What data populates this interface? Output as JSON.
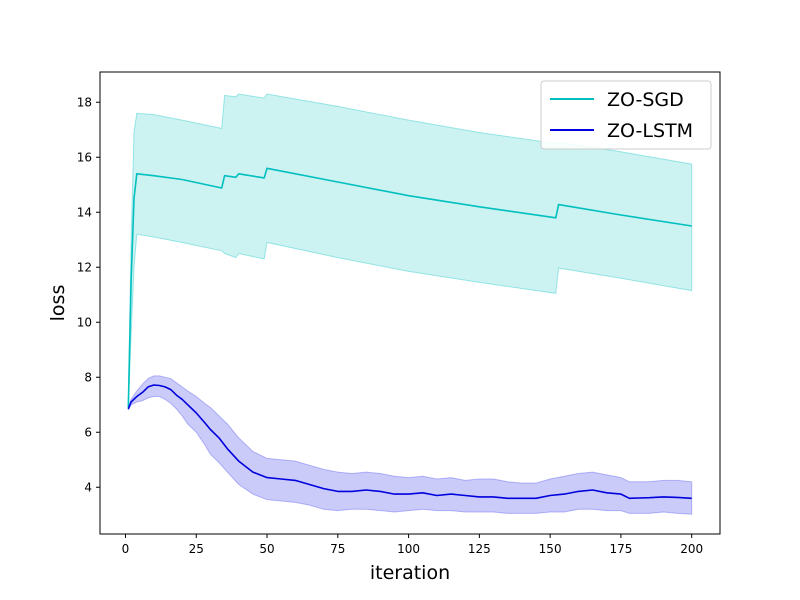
{
  "chart_data": {
    "type": "line",
    "xlabel": "iteration",
    "ylabel": "loss",
    "xlim": [
      -9,
      210
    ],
    "ylim": [
      2.3,
      19.1
    ],
    "xticks": [
      0,
      25,
      50,
      75,
      100,
      125,
      150,
      175,
      200
    ],
    "yticks": [
      4,
      6,
      8,
      10,
      12,
      14,
      16,
      18
    ],
    "grid": false,
    "legend_position": "top-right",
    "series": [
      {
        "name": "ZO-SGD",
        "color": "#00bfbf",
        "band_color": "#00bfbf",
        "points": [
          [
            1,
            6.9
          ],
          [
            2,
            11.5
          ],
          [
            3,
            14.5
          ],
          [
            4,
            15.4
          ],
          [
            10,
            15.33
          ],
          [
            20,
            15.19
          ],
          [
            34,
            14.88
          ],
          [
            35,
            15.33
          ],
          [
            39,
            15.27
          ],
          [
            40,
            15.4
          ],
          [
            49,
            15.25
          ],
          [
            50,
            15.6
          ],
          [
            75,
            15.1
          ],
          [
            100,
            14.6
          ],
          [
            125,
            14.2
          ],
          [
            152,
            13.8
          ],
          [
            153,
            14.28
          ],
          [
            175,
            13.9
          ],
          [
            200,
            13.5
          ]
        ],
        "lower": [
          [
            1,
            6.9
          ],
          [
            2,
            9.5
          ],
          [
            3,
            12.0
          ],
          [
            4,
            13.2
          ],
          [
            10,
            13.1
          ],
          [
            20,
            12.9
          ],
          [
            34,
            12.6
          ],
          [
            35,
            12.5
          ],
          [
            39,
            12.35
          ],
          [
            40,
            12.5
          ],
          [
            49,
            12.3
          ],
          [
            50,
            12.9
          ],
          [
            75,
            12.35
          ],
          [
            100,
            11.85
          ],
          [
            125,
            11.45
          ],
          [
            152,
            11.05
          ],
          [
            153,
            11.97
          ],
          [
            175,
            11.6
          ],
          [
            200,
            11.15
          ]
        ],
        "upper": [
          [
            1,
            6.9
          ],
          [
            2,
            13.0
          ],
          [
            3,
            16.9
          ],
          [
            4,
            17.6
          ],
          [
            10,
            17.55
          ],
          [
            20,
            17.35
          ],
          [
            34,
            17.05
          ],
          [
            35,
            18.25
          ],
          [
            39,
            18.2
          ],
          [
            40,
            18.3
          ],
          [
            49,
            18.15
          ],
          [
            50,
            18.3
          ],
          [
            75,
            17.85
          ],
          [
            100,
            17.35
          ],
          [
            125,
            16.9
          ],
          [
            152,
            16.5
          ],
          [
            153,
            16.55
          ],
          [
            175,
            16.2
          ],
          [
            200,
            15.75
          ]
        ]
      },
      {
        "name": "ZO-LSTM",
        "color": "#0000dd",
        "band_color": "#4444ee",
        "points": [
          [
            1,
            6.85
          ],
          [
            2,
            7.1
          ],
          [
            4,
            7.3
          ],
          [
            6,
            7.45
          ],
          [
            8,
            7.65
          ],
          [
            10,
            7.72
          ],
          [
            12,
            7.7
          ],
          [
            14,
            7.65
          ],
          [
            16,
            7.55
          ],
          [
            18,
            7.35
          ],
          [
            20,
            7.2
          ],
          [
            22,
            7.0
          ],
          [
            25,
            6.7
          ],
          [
            28,
            6.35
          ],
          [
            30,
            6.1
          ],
          [
            33,
            5.8
          ],
          [
            36,
            5.4
          ],
          [
            40,
            4.95
          ],
          [
            45,
            4.55
          ],
          [
            50,
            4.35
          ],
          [
            55,
            4.3
          ],
          [
            60,
            4.25
          ],
          [
            65,
            4.1
          ],
          [
            70,
            3.95
          ],
          [
            75,
            3.85
          ],
          [
            80,
            3.85
          ],
          [
            85,
            3.9
          ],
          [
            90,
            3.85
          ],
          [
            95,
            3.75
          ],
          [
            100,
            3.75
          ],
          [
            105,
            3.8
          ],
          [
            110,
            3.7
          ],
          [
            115,
            3.75
          ],
          [
            120,
            3.7
          ],
          [
            125,
            3.65
          ],
          [
            130,
            3.65
          ],
          [
            135,
            3.6
          ],
          [
            140,
            3.6
          ],
          [
            145,
            3.6
          ],
          [
            150,
            3.7
          ],
          [
            155,
            3.75
          ],
          [
            160,
            3.85
          ],
          [
            165,
            3.9
          ],
          [
            170,
            3.8
          ],
          [
            175,
            3.75
          ],
          [
            178,
            3.6
          ],
          [
            185,
            3.62
          ],
          [
            190,
            3.65
          ],
          [
            195,
            3.63
          ],
          [
            200,
            3.6
          ]
        ],
        "lower": [
          [
            1,
            6.8
          ],
          [
            2,
            7.0
          ],
          [
            4,
            7.1
          ],
          [
            6,
            7.15
          ],
          [
            8,
            7.25
          ],
          [
            10,
            7.3
          ],
          [
            12,
            7.3
          ],
          [
            14,
            7.2
          ],
          [
            16,
            7.05
          ],
          [
            18,
            6.85
          ],
          [
            20,
            6.6
          ],
          [
            22,
            6.3
          ],
          [
            25,
            6.0
          ],
          [
            28,
            5.55
          ],
          [
            30,
            5.2
          ],
          [
            33,
            4.9
          ],
          [
            36,
            4.55
          ],
          [
            40,
            4.1
          ],
          [
            45,
            3.75
          ],
          [
            50,
            3.55
          ],
          [
            55,
            3.5
          ],
          [
            60,
            3.45
          ],
          [
            65,
            3.35
          ],
          [
            70,
            3.2
          ],
          [
            75,
            3.15
          ],
          [
            80,
            3.2
          ],
          [
            85,
            3.2
          ],
          [
            90,
            3.15
          ],
          [
            95,
            3.1
          ],
          [
            100,
            3.15
          ],
          [
            105,
            3.2
          ],
          [
            110,
            3.15
          ],
          [
            115,
            3.15
          ],
          [
            120,
            3.1
          ],
          [
            125,
            3.1
          ],
          [
            130,
            3.1
          ],
          [
            135,
            3.05
          ],
          [
            140,
            3.05
          ],
          [
            145,
            3.05
          ],
          [
            150,
            3.1
          ],
          [
            155,
            3.1
          ],
          [
            160,
            3.2
          ],
          [
            165,
            3.2
          ],
          [
            170,
            3.15
          ],
          [
            175,
            3.15
          ],
          [
            178,
            3.05
          ],
          [
            185,
            3.05
          ],
          [
            190,
            3.1
          ],
          [
            195,
            3.05
          ],
          [
            200,
            3.02
          ]
        ],
        "upper": [
          [
            1,
            6.9
          ],
          [
            2,
            7.2
          ],
          [
            4,
            7.5
          ],
          [
            6,
            7.75
          ],
          [
            8,
            7.95
          ],
          [
            10,
            8.05
          ],
          [
            12,
            8.05
          ],
          [
            14,
            8.0
          ],
          [
            16,
            7.95
          ],
          [
            18,
            7.8
          ],
          [
            20,
            7.65
          ],
          [
            22,
            7.5
          ],
          [
            25,
            7.3
          ],
          [
            28,
            7.05
          ],
          [
            30,
            6.9
          ],
          [
            33,
            6.6
          ],
          [
            36,
            6.3
          ],
          [
            40,
            5.8
          ],
          [
            45,
            5.3
          ],
          [
            50,
            5.05
          ],
          [
            55,
            5.0
          ],
          [
            60,
            4.95
          ],
          [
            65,
            4.8
          ],
          [
            70,
            4.65
          ],
          [
            75,
            4.55
          ],
          [
            80,
            4.5
          ],
          [
            85,
            4.55
          ],
          [
            90,
            4.5
          ],
          [
            95,
            4.4
          ],
          [
            100,
            4.35
          ],
          [
            105,
            4.4
          ],
          [
            110,
            4.3
          ],
          [
            115,
            4.35
          ],
          [
            120,
            4.25
          ],
          [
            125,
            4.3
          ],
          [
            130,
            4.3
          ],
          [
            135,
            4.2
          ],
          [
            140,
            4.15
          ],
          [
            145,
            4.15
          ],
          [
            150,
            4.3
          ],
          [
            155,
            4.4
          ],
          [
            160,
            4.5
          ],
          [
            165,
            4.55
          ],
          [
            170,
            4.45
          ],
          [
            175,
            4.35
          ],
          [
            178,
            4.2
          ],
          [
            185,
            4.2
          ],
          [
            190,
            4.25
          ],
          [
            195,
            4.25
          ],
          [
            200,
            4.2
          ]
        ]
      }
    ]
  }
}
